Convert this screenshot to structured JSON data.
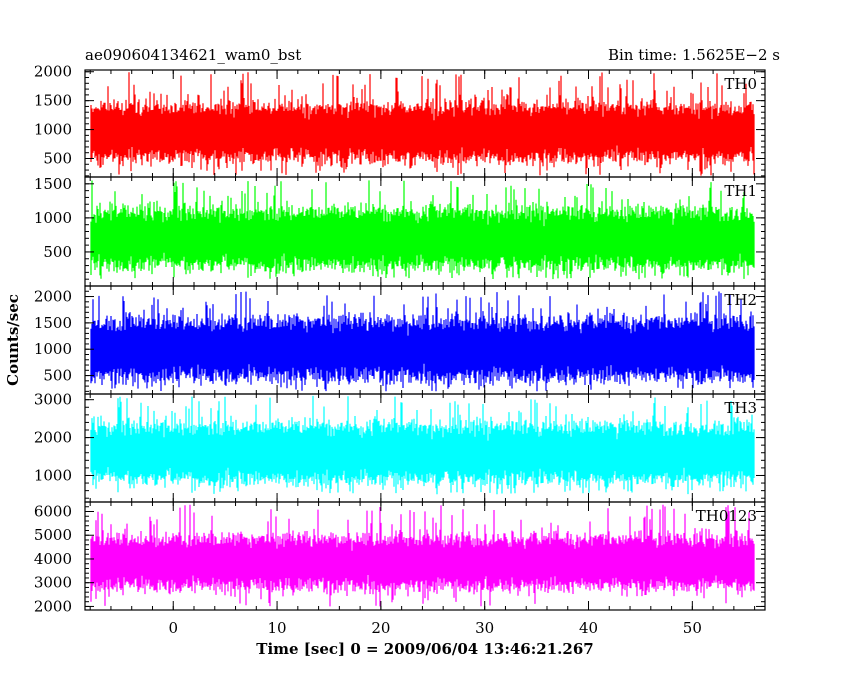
{
  "header": {
    "left_title": "ae090604134621_wam0_bst",
    "right_title": "Bin time: 1.5625E−2 s"
  },
  "chart_data": {
    "type": "line",
    "xlabel": "Time [sec] 0 = 2009/06/04 13:46:21.267",
    "ylabel": "Counts/sec",
    "xlim": [
      -8.5,
      57
    ],
    "x_ticks": [
      0,
      10,
      20,
      30,
      40,
      50
    ],
    "x_tick_labels": [
      "0",
      "10",
      "20",
      "30",
      "40",
      "50"
    ],
    "data_range": [
      -8,
      56
    ],
    "bin_time": 0.015625,
    "panels": [
      {
        "label": "TH0",
        "color": "#ff0000",
        "ylim": [
          180,
          2030
        ],
        "y_ticks": [
          500,
          1000,
          1500,
          2000
        ],
        "y_tick_labels": [
          "500",
          "1000",
          "1500",
          "2000"
        ],
        "typical_range": [
          450,
          1450
        ],
        "extreme_range": [
          200,
          2000
        ]
      },
      {
        "label": "TH1",
        "color": "#00ff00",
        "ylim": [
          0,
          1600
        ],
        "y_ticks": [
          500,
          1000,
          1500
        ],
        "y_tick_labels": [
          "500",
          "1000",
          "1500"
        ],
        "typical_range": [
          250,
          1150
        ],
        "extreme_range": [
          100,
          1550
        ]
      },
      {
        "label": "TH2",
        "color": "#0000ff",
        "ylim": [
          150,
          2200
        ],
        "y_ticks": [
          500,
          1000,
          1500,
          2000
        ],
        "y_tick_labels": [
          "500",
          "1000",
          "1500",
          "2000"
        ],
        "typical_range": [
          400,
          1600
        ],
        "extreme_range": [
          200,
          2100
        ]
      },
      {
        "label": "TH3",
        "color": "#00ffff",
        "ylim": [
          300,
          3150
        ],
        "y_ticks": [
          1000,
          2000,
          3000
        ],
        "y_tick_labels": [
          "1000",
          "2000",
          "3000"
        ],
        "typical_range": [
          800,
          2400
        ],
        "extreme_range": [
          500,
          3100
        ]
      },
      {
        "label": "TH0123",
        "color": "#ff00ff",
        "ylim": [
          1850,
          6400
        ],
        "y_ticks": [
          2000,
          3000,
          4000,
          5000,
          6000
        ],
        "y_tick_labels": [
          "2000",
          "3000",
          "4000",
          "5000",
          "6000"
        ],
        "typical_range": [
          2700,
          5000
        ],
        "extreme_range": [
          2000,
          6300
        ]
      }
    ]
  }
}
